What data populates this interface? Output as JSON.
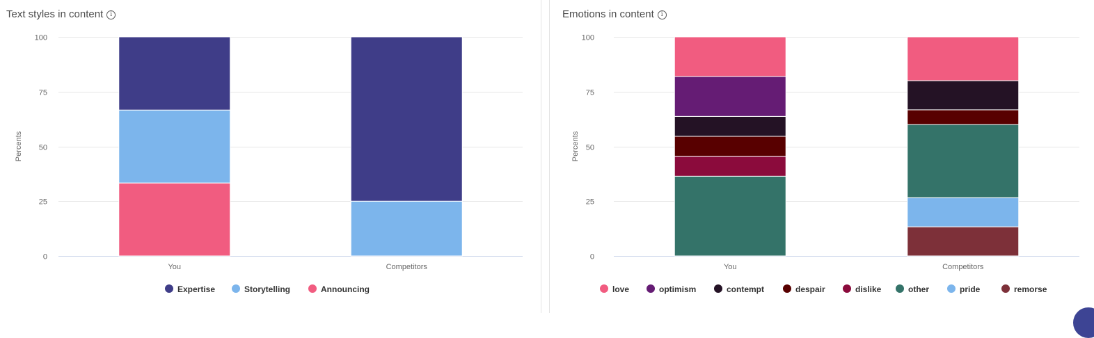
{
  "left_panel": {
    "title": "Text styles in content",
    "info_icon": "info-icon"
  },
  "right_panel": {
    "title": "Emotions in content",
    "info_icon": "info-icon"
  },
  "chart_data": [
    {
      "type": "bar",
      "stacked": true,
      "title": "Text styles in content",
      "ylabel": "Percents",
      "xlabel": "",
      "ylim": [
        0,
        100
      ],
      "yticks": [
        0,
        25,
        50,
        75,
        100
      ],
      "categories": [
        "You",
        "Competitors"
      ],
      "grid": true,
      "legend_position": "bottom",
      "series": [
        {
          "name": "Announcing",
          "color": "#f15c80",
          "values": [
            33.3,
            0
          ]
        },
        {
          "name": "Storytelling",
          "color": "#7cb5ec",
          "values": [
            33.3,
            25
          ]
        },
        {
          "name": "Expertise",
          "color": "#3f3d88",
          "values": [
            33.4,
            75
          ]
        }
      ],
      "legend_order": [
        "Expertise",
        "Storytelling",
        "Announcing"
      ]
    },
    {
      "type": "bar",
      "stacked": true,
      "title": "Emotions in content",
      "ylabel": "Percents",
      "xlabel": "",
      "ylim": [
        0,
        100
      ],
      "yticks": [
        0,
        25,
        50,
        75,
        100
      ],
      "categories": [
        "You",
        "Competitors"
      ],
      "grid": true,
      "legend_position": "bottom",
      "series": [
        {
          "name": "remorse",
          "color": "#7d3039",
          "values": [
            0,
            13.3
          ]
        },
        {
          "name": "pride",
          "color": "#7cb5ec",
          "values": [
            0,
            13.3
          ]
        },
        {
          "name": "other",
          "color": "#347369",
          "values": [
            36.4,
            33.4
          ]
        },
        {
          "name": "dislike",
          "color": "#8b0b3c",
          "values": [
            9.1,
            0
          ]
        },
        {
          "name": "despair",
          "color": "#580000",
          "values": [
            9.1,
            6.7
          ]
        },
        {
          "name": "contempt",
          "color": "#241225",
          "values": [
            9.1,
            13.3
          ]
        },
        {
          "name": "optimism",
          "color": "#651c74",
          "values": [
            18.2,
            0
          ]
        },
        {
          "name": "love",
          "color": "#f15c80",
          "values": [
            18.1,
            20
          ]
        }
      ],
      "legend_order": [
        "love",
        "optimism",
        "contempt",
        "despair",
        "dislike",
        "other",
        "pride",
        "remorse"
      ]
    }
  ]
}
